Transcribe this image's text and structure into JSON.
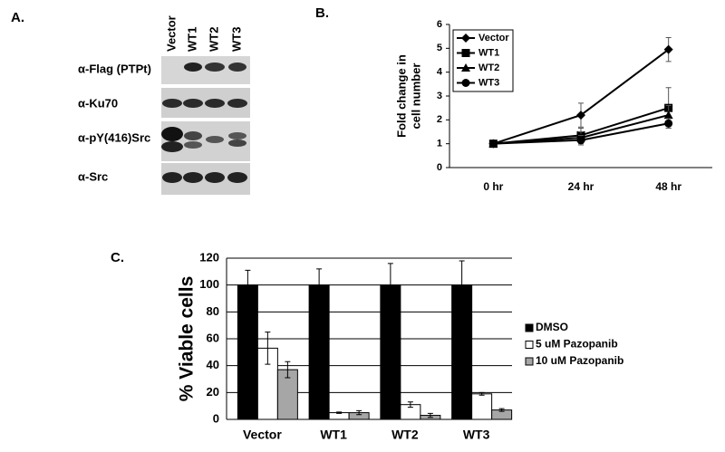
{
  "blot": {
    "panel_label": "A.",
    "lanes": [
      "Vector",
      "WT1",
      "WT2",
      "WT3"
    ],
    "rows": [
      "α-Flag (PTPt)",
      "α-Ku70",
      "α-pY(416)Src",
      "α-Src"
    ]
  },
  "chart_data": [
    {
      "type": "line",
      "panel_label": "B.",
      "ylabel": [
        "Fold change in",
        "cell number"
      ],
      "categories": [
        "0 hr",
        "24 hr",
        "48 hr"
      ],
      "ylim": [
        0,
        6
      ],
      "yticks": [
        0,
        1,
        2,
        3,
        4,
        5,
        6
      ],
      "grid": false,
      "legend": "top-left",
      "series": [
        {
          "name": "Vector",
          "color": "#000000",
          "marker": "diamond",
          "values": [
            1,
            2.2,
            4.95
          ],
          "errors": [
            0,
            0.5,
            0.5
          ]
        },
        {
          "name": "WT1",
          "color": "#000000",
          "marker": "square",
          "values": [
            1,
            1.35,
            2.5
          ],
          "errors": [
            0,
            0.3,
            0.85
          ]
        },
        {
          "name": "WT2",
          "color": "#000000",
          "marker": "triangle",
          "values": [
            1,
            1.25,
            2.2
          ],
          "errors": [
            0,
            0.25,
            0.4
          ]
        },
        {
          "name": "WT3",
          "color": "#000000",
          "marker": "circle",
          "values": [
            1,
            1.15,
            1.85
          ],
          "errors": [
            0,
            0.2,
            0.2
          ]
        }
      ]
    },
    {
      "type": "bar",
      "panel_label": "C.",
      "ylabel": "% Viable cells",
      "categories": [
        "Vector",
        "WT1",
        "WT2",
        "WT3"
      ],
      "ylim": [
        0,
        120
      ],
      "yticks": [
        0,
        20,
        40,
        60,
        80,
        100,
        120
      ],
      "grid": true,
      "legend": "right",
      "series": [
        {
          "name": "DMSO",
          "color": "#000000",
          "values": [
            100,
            100,
            100,
            100
          ],
          "errors": [
            11,
            12,
            16,
            18
          ]
        },
        {
          "name": "5 uM Pazopanib",
          "color": "#ffffff",
          "values": [
            53,
            5,
            11,
            19
          ],
          "errors": [
            12,
            0.5,
            2,
            1
          ]
        },
        {
          "name": "10 uM Pazopanib",
          "color": "#a6a6a6",
          "values": [
            37,
            5,
            3,
            7
          ],
          "errors": [
            6,
            1.5,
            1.5,
            1
          ]
        }
      ]
    }
  ]
}
